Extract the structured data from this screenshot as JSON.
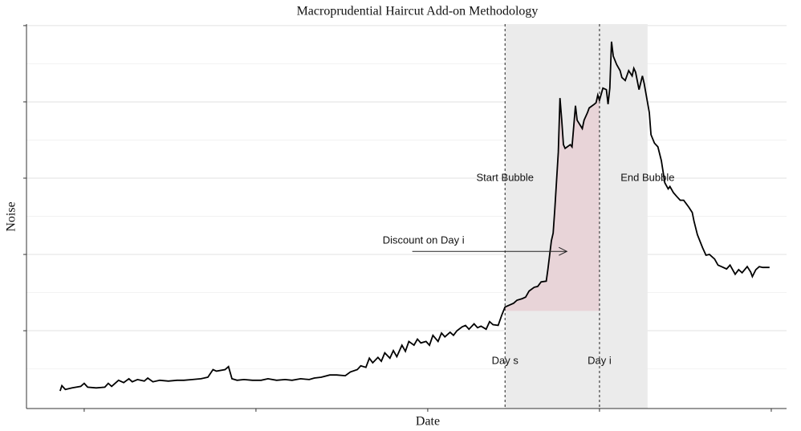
{
  "chart_data": {
    "type": "line",
    "title": "Macroprudential Haircut Add-on Methodology",
    "x_label": "Date",
    "y_label": "Noise",
    "color": "#000000",
    "xlim": [
      -33.6,
      408.9
    ],
    "xticks": [
      0,
      100,
      200,
      300,
      400
    ],
    "ylim": [
      -0.2,
      50.2
    ],
    "yticks": [
      10,
      20,
      30,
      40,
      50
    ],
    "minor_yticks": [
      5,
      15,
      25,
      35,
      45
    ],
    "grid": true,
    "x": [
      -14,
      -13,
      -11,
      -7,
      -2,
      0,
      2,
      7,
      12,
      14,
      16,
      20,
      23,
      26,
      28,
      31,
      35,
      37,
      40,
      44,
      49,
      54,
      58,
      63,
      68,
      72,
      75,
      77,
      82,
      84,
      86,
      89,
      93,
      98,
      103,
      107,
      112,
      117,
      121,
      126,
      131,
      134,
      138,
      143,
      147,
      152,
      155,
      159,
      161,
      164,
      166,
      168,
      171,
      173,
      175,
      178,
      180,
      182,
      185,
      187,
      189,
      192,
      194,
      196,
      199,
      201,
      203,
      206,
      208,
      210,
      213,
      215,
      217,
      220,
      222,
      224,
      227,
      229,
      231,
      234,
      236,
      238,
      241,
      243,
      245,
      248,
      250,
      252,
      255,
      257,
      259,
      262,
      264,
      266,
      269,
      270,
      272,
      273,
      274,
      276,
      277,
      278,
      279,
      280,
      283,
      284,
      286,
      287,
      290,
      291,
      293,
      294,
      297,
      298,
      299,
      300,
      302,
      304,
      305,
      306,
      307,
      308,
      310,
      312,
      313,
      315,
      317,
      319,
      320,
      321,
      323,
      325,
      326,
      329,
      330,
      332,
      334,
      336,
      338,
      340,
      341,
      343,
      345,
      347,
      349,
      352,
      354,
      355,
      357,
      360,
      362,
      364,
      367,
      369,
      371,
      374,
      376,
      379,
      381,
      383,
      386,
      388,
      389,
      391,
      393,
      395,
      399
    ],
    "values": [
      2.1,
      2.8,
      2.3,
      2.5,
      2.7,
      3.1,
      2.6,
      2.5,
      2.6,
      3.1,
      2.7,
      3.5,
      3.2,
      3.7,
      3.3,
      3.6,
      3.4,
      3.8,
      3.3,
      3.5,
      3.4,
      3.5,
      3.5,
      3.6,
      3.7,
      3.9,
      4.9,
      4.7,
      4.9,
      5.3,
      3.7,
      3.5,
      3.6,
      3.5,
      3.5,
      3.7,
      3.5,
      3.6,
      3.5,
      3.7,
      3.6,
      3.8,
      3.9,
      4.2,
      4.2,
      4.1,
      4.6,
      4.9,
      5.4,
      5.2,
      6.4,
      5.8,
      6.5,
      6.0,
      7.1,
      6.4,
      7.4,
      6.6,
      8.1,
      7.3,
      8.6,
      8.1,
      8.9,
      8.4,
      8.6,
      8.1,
      9.4,
      8.6,
      9.7,
      9.2,
      9.8,
      9.4,
      10.0,
      10.5,
      10.7,
      10.2,
      10.9,
      10.4,
      10.6,
      10.2,
      11.2,
      10.8,
      10.7,
      12.0,
      13.1,
      13.4,
      13.6,
      14.0,
      14.2,
      14.4,
      15.2,
      15.7,
      15.8,
      16.4,
      16.5,
      18.1,
      21.8,
      22.8,
      26.0,
      33.4,
      40.5,
      37.6,
      34.4,
      33.9,
      34.4,
      34.1,
      39.5,
      37.6,
      36.5,
      37.6,
      38.6,
      39.2,
      39.7,
      39.9,
      40.9,
      40.2,
      41.8,
      41.6,
      39.7,
      41.8,
      47.9,
      46.0,
      44.9,
      44.1,
      43.2,
      42.8,
      44.1,
      43.4,
      44.4,
      43.9,
      41.6,
      43.4,
      42.4,
      38.6,
      35.7,
      34.6,
      34.1,
      32.3,
      29.4,
      28.6,
      28.9,
      28.1,
      27.6,
      27.1,
      27.1,
      26.2,
      25.5,
      24.4,
      22.6,
      20.9,
      19.9,
      20.0,
      19.4,
      18.6,
      18.4,
      18.1,
      18.6,
      17.4,
      18.0,
      17.6,
      18.4,
      17.7,
      17.1,
      18.0,
      18.4,
      18.3,
      18.3
    ],
    "shaded_span": [
      245,
      328
    ],
    "shade_color": "#ebebeb",
    "discount_base": 12.6,
    "discount_color": "#e8d4d8",
    "day_lines": [
      {
        "x": 245,
        "label": "Day s"
      },
      {
        "x": 300,
        "label": "Day i"
      }
    ],
    "day_label_y": 6,
    "bubble_labels": [
      "Start Bubble",
      "End Bubble"
    ],
    "bubble_label_y": 30,
    "arrow": {
      "text": "Discount on Day i",
      "x": 191,
      "x_end": 281,
      "y": 20.4
    }
  }
}
